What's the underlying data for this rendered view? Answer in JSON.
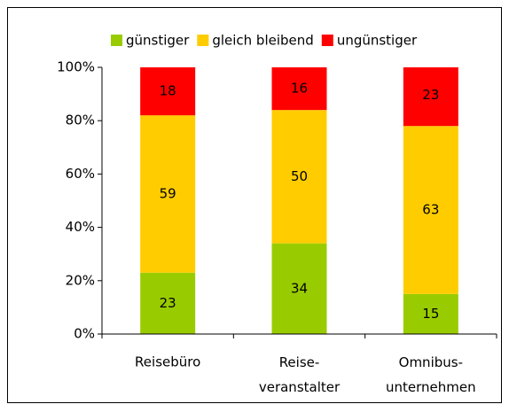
{
  "chart_data": {
    "type": "stacked_bar",
    "categories": [
      "Reisebüro",
      "Reise-\nveranstalter",
      "Omnibus-\nunternehmen"
    ],
    "series": [
      {
        "name": "günstiger",
        "color": "#99cc00",
        "values": [
          23,
          34,
          15
        ]
      },
      {
        "name": "gleich bleibend",
        "color": "#ffcc00",
        "values": [
          59,
          50,
          63
        ]
      },
      {
        "name": "ungünstiger",
        "color": "#ff0000",
        "values": [
          18,
          16,
          23
        ]
      }
    ],
    "ylim": [
      0,
      100
    ],
    "yticks": [
      {
        "value": 0,
        "label": "0%"
      },
      {
        "value": 20,
        "label": "20%"
      },
      {
        "value": 40,
        "label": "40%"
      },
      {
        "value": 60,
        "label": "60%"
      },
      {
        "value": 80,
        "label": "80%"
      },
      {
        "value": 100,
        "label": "100%"
      }
    ],
    "legend": "top"
  }
}
